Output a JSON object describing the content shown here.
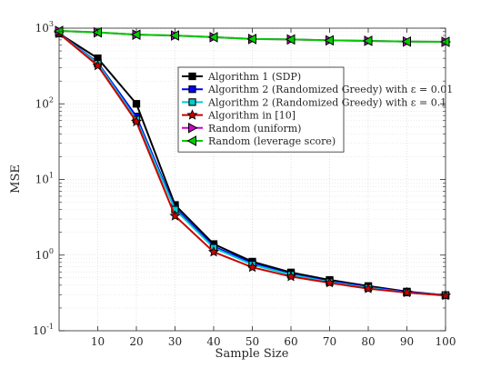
{
  "chart_data": {
    "type": "line",
    "y_scale": "log",
    "xlabel": "Sample Size",
    "ylabel": "MSE",
    "xlim": [
      0,
      100
    ],
    "ylim": [
      0.1,
      1000
    ],
    "x_ticks": [
      10,
      20,
      30,
      40,
      50,
      60,
      70,
      80,
      90,
      100
    ],
    "x_tick_labels": [
      "10",
      "20",
      "30",
      "40",
      "50",
      "60",
      "70",
      "80",
      "90",
      "100"
    ],
    "y_ticks": [
      {
        "value": 0.1,
        "base": "10",
        "exp": "-1"
      },
      {
        "value": 1,
        "base": "10",
        "exp": "0"
      },
      {
        "value": 10,
        "base": "10",
        "exp": "1"
      },
      {
        "value": 100,
        "base": "10",
        "exp": "2"
      },
      {
        "value": 1000,
        "base": "10",
        "exp": "3"
      }
    ],
    "grid": true,
    "legend_position": "top-right",
    "x": [
      0,
      10,
      20,
      30,
      40,
      50,
      60,
      70,
      80,
      90,
      100
    ],
    "series": [
      {
        "name": "Algorithm 1 (SDP)",
        "color": "#000000",
        "marker": "square",
        "values": [
          850,
          400,
          100,
          4.6,
          1.4,
          0.82,
          0.59,
          0.47,
          0.39,
          0.33,
          0.295
        ]
      },
      {
        "name": "Algorithm 2 (Randomized Greedy) with ε = 0.01",
        "color": "#0000ff",
        "marker": "square",
        "values": [
          850,
          350,
          68,
          4.2,
          1.3,
          0.78,
          0.56,
          0.45,
          0.38,
          0.325,
          0.295
        ]
      },
      {
        "name": "Algorithm 2 (Randomized Greedy) with ε = 0.1",
        "color": "#00cccc",
        "marker": "square",
        "values": [
          850,
          340,
          62,
          4.0,
          1.25,
          0.75,
          0.55,
          0.44,
          0.37,
          0.32,
          0.295
        ]
      },
      {
        "name": "Algorithm in [10]",
        "color": "#cc0000",
        "marker": "star",
        "values": [
          850,
          320,
          58,
          3.3,
          1.1,
          0.69,
          0.52,
          0.43,
          0.36,
          0.32,
          0.292
        ]
      },
      {
        "name": "Random (uniform)",
        "color": "#cc00cc",
        "marker": "triangle-right",
        "values": [
          920,
          880,
          820,
          800,
          760,
          720,
          710,
          690,
          680,
          665,
          660
        ]
      },
      {
        "name": "Random (leverage score)",
        "color": "#00cc00",
        "marker": "triangle-left",
        "values": [
          920,
          880,
          820,
          800,
          760,
          720,
          710,
          690,
          680,
          665,
          660
        ]
      }
    ]
  }
}
